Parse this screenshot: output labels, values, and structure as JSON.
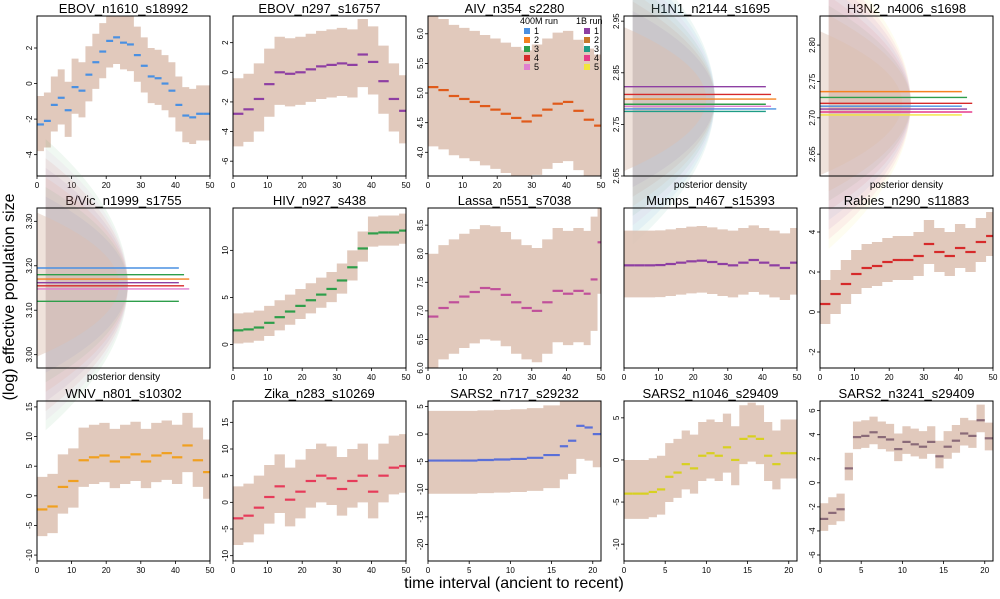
{
  "figure": {
    "ylabel": "(log) effective population size",
    "xlabel": "time interval (ancient to recent)",
    "legend": {
      "title_400m": "400M run",
      "title_1b": "1B run",
      "runs": [
        "1",
        "2",
        "3",
        "4",
        "5"
      ],
      "colors_400m": [
        "#4a90e2",
        "#f58220",
        "#2e9e4a",
        "#d62a2a",
        "#e07fd0"
      ],
      "colors_1b": [
        "#8e3fa3",
        "#c7792a",
        "#1e9c86",
        "#e63b8a",
        "#f2e63a"
      ]
    },
    "density_label": "posterior density",
    "band_color": "#dcbfb0"
  },
  "chart_data": [
    {
      "type": "line",
      "title": "EBOV_n1610_s18992",
      "xlim": [
        0,
        50
      ],
      "ylim": [
        -5.2,
        3.8
      ],
      "xticks": [
        0,
        10,
        20,
        30,
        40,
        50
      ],
      "yticks": [
        -4,
        -2,
        0,
        2
      ],
      "ytick_labels": [
        "-4",
        "-2",
        "0",
        "2"
      ],
      "color": "#4a90e2",
      "step": true,
      "band": [
        1.6,
        1.5
      ],
      "x": [
        0,
        2,
        4,
        6,
        8,
        10,
        12,
        14,
        16,
        18,
        20,
        22,
        24,
        26,
        28,
        30,
        32,
        34,
        36,
        38,
        40,
        42,
        44,
        46,
        48,
        50
      ],
      "y": [
        -2.3,
        -2.1,
        -1.2,
        -0.8,
        -1.5,
        -0.2,
        -0.4,
        0.5,
        1.2,
        1.8,
        2.4,
        2.6,
        2.3,
        2.2,
        1.6,
        1.0,
        0.4,
        0.3,
        0.0,
        -0.4,
        -1.2,
        -1.8,
        -1.9,
        -1.7,
        -1.7,
        -1.7
      ]
    },
    {
      "type": "line",
      "title": "EBOV_n297_s16757",
      "xlim": [
        0,
        50
      ],
      "ylim": [
        -7,
        3.8
      ],
      "xticks": [
        0,
        10,
        20,
        30,
        40,
        50
      ],
      "yticks": [
        -6,
        -4,
        -2,
        0,
        2
      ],
      "ytick_labels": [
        "-6",
        "-4",
        "-2",
        "0",
        "2"
      ],
      "color": "#8e3fa3",
      "step": true,
      "band": [
        2.4,
        2.2
      ],
      "x": [
        0,
        3,
        6,
        9,
        12,
        15,
        18,
        21,
        24,
        27,
        30,
        33,
        36,
        39,
        42,
        45,
        48,
        50
      ],
      "y": [
        -2.8,
        -2.5,
        -1.8,
        -0.8,
        0.0,
        -0.1,
        0.0,
        0.2,
        0.4,
        0.5,
        0.6,
        0.5,
        1.2,
        0.7,
        -0.6,
        -1.8,
        -2.6,
        -2.6
      ]
    },
    {
      "type": "line",
      "title": "AIV_n354_s2280",
      "xlim": [
        0,
        50
      ],
      "ylim": [
        3.6,
        6.3
      ],
      "xticks": [
        0,
        10,
        20,
        30,
        40,
        50
      ],
      "yticks": [
        4.0,
        4.5,
        5.0,
        5.5,
        6.0
      ],
      "ytick_labels": [
        "4.0",
        "4.5",
        "5.0",
        "5.5",
        "6.0"
      ],
      "color": "#e05a1a",
      "step": true,
      "band": [
        1.2,
        1.0
      ],
      "x": [
        0,
        3,
        6,
        9,
        12,
        15,
        18,
        21,
        24,
        27,
        30,
        33,
        36,
        39,
        42,
        45,
        48,
        50
      ],
      "y": [
        5.1,
        5.05,
        4.95,
        4.9,
        4.85,
        4.78,
        4.72,
        4.65,
        4.58,
        4.52,
        4.62,
        4.72,
        4.82,
        4.85,
        4.7,
        4.55,
        4.45,
        4.42
      ]
    },
    {
      "type": "density",
      "title": "H1N1_n2144_s1695",
      "ylim": [
        2.65,
        2.96
      ],
      "yticks": [
        2.65,
        2.75,
        2.85,
        2.95
      ],
      "ytick_labels": [
        "2.65",
        "2.75",
        "2.85",
        "2.95"
      ],
      "xlabel": "posterior density",
      "lines": [
        2.823,
        2.808,
        2.799,
        2.789,
        2.785,
        2.78,
        2.775
      ],
      "line_colors": [
        "#8e3fa3",
        "#d62a2a",
        "#f58220",
        "#2e9e4a",
        "#e07fd0",
        "#4a90e2",
        "#1e9c86"
      ]
    },
    {
      "type": "density",
      "title": "H3N2_n4006_s1698",
      "ylim": [
        2.62,
        2.84
      ],
      "yticks": [
        2.65,
        2.7,
        2.75,
        2.8
      ],
      "ytick_labels": [
        "2.65",
        "2.70",
        "2.75",
        "2.80"
      ],
      "xlabel": "posterior density",
      "lines": [
        2.736,
        2.728,
        2.72,
        2.716,
        2.712,
        2.708,
        2.704
      ],
      "line_colors": [
        "#f58220",
        "#2e9e4a",
        "#d62a2a",
        "#4a90e2",
        "#8e3fa3",
        "#e63b8a",
        "#f2e63a"
      ]
    },
    {
      "type": "density",
      "title": "B/Vic_n1999_s1755",
      "ylim": [
        2.97,
        3.33
      ],
      "yticks": [
        3.0,
        3.1,
        3.2,
        3.3
      ],
      "ytick_labels": [
        "3.00",
        "3.10",
        "3.20",
        "3.30"
      ],
      "xlabel": "posterior density",
      "lines": [
        3.195,
        3.18,
        3.17,
        3.162,
        3.155,
        3.148,
        3.12
      ],
      "line_colors": [
        "#4a90e2",
        "#2e9e4a",
        "#f58220",
        "#8e3fa3",
        "#d62a2a",
        "#e07fd0",
        "#2e9e4a"
      ]
    },
    {
      "type": "line",
      "title": "HIV_n927_s438",
      "xlim": [
        0,
        50
      ],
      "ylim": [
        -2.5,
        14.5
      ],
      "xticks": [
        0,
        10,
        20,
        30,
        40,
        50
      ],
      "yticks": [
        0,
        5,
        10
      ],
      "ytick_labels": [
        "0",
        "5",
        "10"
      ],
      "color": "#2e9e4a",
      "step": true,
      "band": [
        1.8,
        1.4
      ],
      "x": [
        0,
        3,
        6,
        9,
        12,
        15,
        18,
        21,
        24,
        27,
        30,
        33,
        36,
        39,
        42,
        45,
        48,
        50
      ],
      "y": [
        1.5,
        1.6,
        1.8,
        2.3,
        2.9,
        3.5,
        4.1,
        4.7,
        5.3,
        5.9,
        6.8,
        8.2,
        10.2,
        11.8,
        11.9,
        11.9,
        12.1,
        12.1
      ]
    },
    {
      "type": "line",
      "title": "Lassa_n551_s7038",
      "xlim": [
        0,
        50
      ],
      "ylim": [
        6.0,
        8.8
      ],
      "xticks": [
        0,
        10,
        20,
        30,
        40,
        50
      ],
      "yticks": [
        6.0,
        6.5,
        7.0,
        7.5,
        8.0,
        8.5
      ],
      "ytick_labels": [
        "6.0",
        "6.5",
        "7.0",
        "7.5",
        "8.0",
        "8.5"
      ],
      "color": "#c0509a",
      "step": true,
      "band": [
        1.1,
        0.9
      ],
      "x": [
        0,
        3,
        6,
        9,
        12,
        15,
        18,
        21,
        24,
        27,
        30,
        33,
        36,
        39,
        42,
        45,
        47,
        49,
        50
      ],
      "y": [
        6.9,
        7.05,
        7.15,
        7.25,
        7.33,
        7.4,
        7.38,
        7.28,
        7.15,
        7.05,
        7.0,
        7.15,
        7.35,
        7.3,
        7.35,
        7.3,
        7.55,
        8.2,
        8.35
      ]
    },
    {
      "type": "line",
      "title": "Mumps_n467_s15393",
      "xlim": [
        0,
        50
      ],
      "ylim": [
        -6,
        6
      ],
      "xticks": [
        0,
        10,
        20,
        30,
        40,
        50
      ],
      "yticks": [],
      "ytick_labels": [],
      "color": "#8e3fa3",
      "step": true,
      "band": [
        2.6,
        2.4
      ],
      "x": [
        0,
        3,
        6,
        9,
        12,
        15,
        18,
        21,
        24,
        27,
        30,
        33,
        36,
        39,
        42,
        45,
        48,
        50
      ],
      "y": [
        1.7,
        1.7,
        1.7,
        1.72,
        1.8,
        1.9,
        2.0,
        2.05,
        1.95,
        1.8,
        1.7,
        1.9,
        2.1,
        1.9,
        1.7,
        1.5,
        1.9,
        2.0
      ]
    },
    {
      "type": "line",
      "title": "Rabies_n290_s11883",
      "xlim": [
        0,
        50
      ],
      "ylim": [
        -2.8,
        5.2
      ],
      "xticks": [
        0,
        10,
        20,
        30,
        40,
        50
      ],
      "yticks": [
        -2,
        0,
        2,
        4
      ],
      "ytick_labels": [
        "-2",
        "0",
        "2",
        "4"
      ],
      "color": "#d62a2a",
      "step": true,
      "band": [
        1.2,
        1.0
      ],
      "x": [
        0,
        3,
        6,
        9,
        12,
        15,
        18,
        21,
        24,
        27,
        30,
        33,
        36,
        39,
        42,
        45,
        48,
        50
      ],
      "y": [
        0.4,
        0.9,
        1.4,
        1.9,
        2.2,
        2.3,
        2.5,
        2.6,
        2.6,
        2.8,
        3.4,
        3.0,
        2.8,
        3.2,
        3.0,
        3.5,
        3.8,
        3.0
      ]
    },
    {
      "type": "line",
      "title": "WNV_n801_s10302",
      "xlim": [
        0,
        50
      ],
      "ylim": [
        -11,
        16
      ],
      "xticks": [
        0,
        10,
        20,
        30,
        40,
        50
      ],
      "yticks": [
        -10,
        -5,
        0,
        5,
        10,
        15
      ],
      "ytick_labels": [
        "-10",
        "-5",
        "0",
        "5",
        "10",
        "15"
      ],
      "color": "#f0a020",
      "step": true,
      "band": [
        5.5,
        4.5
      ],
      "x": [
        0,
        3,
        6,
        9,
        12,
        15,
        18,
        21,
        24,
        27,
        30,
        33,
        36,
        39,
        42,
        45,
        48,
        50
      ],
      "y": [
        -2.3,
        -1.8,
        1.5,
        2.5,
        6.0,
        6.5,
        6.8,
        5.8,
        6.5,
        7.0,
        5.8,
        6.8,
        7.2,
        6.5,
        8.5,
        6.0,
        4.0,
        4.0
      ]
    },
    {
      "type": "line",
      "title": "Zika_n283_s10269",
      "xlim": [
        0,
        50
      ],
      "ylim": [
        -11,
        19
      ],
      "xticks": [
        0,
        10,
        20,
        30,
        40,
        50
      ],
      "yticks": [
        -10,
        -5,
        0,
        5,
        10,
        15
      ],
      "ytick_labels": [
        "-10",
        "-5",
        "0",
        "5",
        "10",
        "15"
      ],
      "color": "#e63b5a",
      "step": true,
      "band": [
        6.0,
        5.0
      ],
      "x": [
        0,
        3,
        6,
        9,
        12,
        15,
        18,
        21,
        24,
        27,
        30,
        33,
        36,
        39,
        42,
        45,
        48,
        50
      ],
      "y": [
        -3.0,
        -2.5,
        -1.0,
        1.0,
        3.0,
        0.5,
        2.0,
        4.0,
        5.0,
        4.5,
        2.5,
        4.0,
        5.0,
        2.0,
        5.0,
        6.5,
        6.8,
        6.8
      ]
    },
    {
      "type": "line",
      "title": "SARS2_n717_s29232",
      "xlim": [
        0,
        21
      ],
      "ylim": [
        -23,
        6
      ],
      "xticks": [
        0,
        5,
        10,
        15,
        20
      ],
      "yticks": [
        -20,
        -15,
        -10,
        -5,
        0,
        5
      ],
      "ytick_labels": [
        "-20",
        "-15",
        "-10",
        "-5",
        "0",
        "5"
      ],
      "color": "#5a6fd8",
      "step": true,
      "band": [
        9.0,
        6.0
      ],
      "x": [
        0,
        2,
        4,
        6,
        8,
        10,
        12,
        14,
        16,
        17,
        18,
        19,
        20,
        21
      ],
      "y": [
        -4.8,
        -4.8,
        -4.8,
        -4.7,
        -4.6,
        -4.5,
        -4.3,
        -3.8,
        -2.2,
        -1.2,
        1.5,
        1.2,
        0.0,
        -0.5
      ]
    },
    {
      "type": "line",
      "title": "SARS2_n1046_s29409",
      "xlim": [
        0,
        21
      ],
      "ylim": [
        -12,
        7
      ],
      "xticks": [
        0,
        5,
        10,
        15,
        20
      ],
      "yticks": [
        -10,
        -5,
        0,
        5
      ],
      "ytick_labels": [
        "-10",
        "-5",
        "0",
        "5"
      ],
      "color": "#d8d020",
      "step": true,
      "band": [
        4.0,
        3.0
      ],
      "x": [
        0,
        1,
        2,
        3,
        4,
        5,
        6,
        7,
        8,
        9,
        10,
        11,
        12,
        13,
        14,
        15,
        16,
        17,
        18,
        19,
        20
      ],
      "y": [
        -4.0,
        -4.0,
        -4.0,
        -3.8,
        -3.5,
        -2.0,
        -1.5,
        -0.5,
        -1.0,
        0.5,
        0.8,
        0.5,
        1.5,
        0.0,
        2.5,
        2.8,
        2.5,
        0.5,
        -0.5,
        0.8,
        0.8
      ]
    },
    {
      "type": "line",
      "title": "SARS2_n3241_s29409",
      "xlim": [
        0,
        21
      ],
      "ylim": [
        -6.5,
        6.8
      ],
      "xticks": [
        0,
        5,
        10,
        15,
        20
      ],
      "yticks": [
        -6,
        -4,
        -2,
        0,
        2,
        4,
        6
      ],
      "ytick_labels": [
        "-6",
        "-4",
        "-2",
        "0",
        "2",
        "4",
        "6"
      ],
      "color": "#8a6a78",
      "step": true,
      "band": [
        1.3,
        1.0
      ],
      "x": [
        0,
        1,
        2,
        3,
        4,
        5,
        6,
        7,
        8,
        9,
        10,
        11,
        12,
        13,
        14,
        15,
        16,
        17,
        18,
        19,
        20
      ],
      "y": [
        -3.0,
        -2.5,
        -2.2,
        1.2,
        3.8,
        3.9,
        4.2,
        3.8,
        3.6,
        2.8,
        3.4,
        3.2,
        3.0,
        3.4,
        2.2,
        3.0,
        3.5,
        4.1,
        3.9,
        5.2,
        3.7
      ]
    }
  ]
}
